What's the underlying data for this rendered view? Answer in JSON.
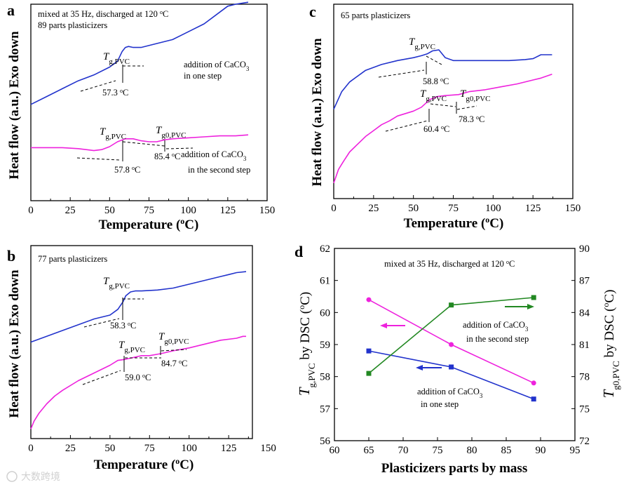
{
  "watermark": "大数跨境",
  "chart_data": [
    {
      "type": "line",
      "panel": "a",
      "panel_label": "a",
      "xlabel": "Temperature (oC)",
      "ylabel": "Heat flow (a.u.) Exo down",
      "xlim": [
        0,
        150
      ],
      "ylim": [
        0,
        100
      ],
      "x_ticks": [
        "0",
        "25",
        "50",
        "75",
        "100",
        "125",
        "150"
      ],
      "note_line1": "mixed at 35 Hz, discharged at 120 oC",
      "note_line2": "89 parts plasticizers",
      "series": [
        {
          "name": "addition of CaCO3 in one step",
          "color": "#2233cc",
          "x": [
            0,
            10,
            20,
            30,
            40,
            50,
            55,
            58,
            60,
            62,
            65,
            70,
            80,
            90,
            100,
            110,
            120,
            125,
            130,
            138
          ],
          "y": [
            49,
            53,
            57,
            61,
            64,
            68,
            71,
            76,
            78,
            78.5,
            78,
            78,
            80,
            82,
            86,
            90,
            96,
            99,
            100,
            101
          ]
        },
        {
          "name": "addition of CaCO3 in the second step",
          "color": "#ee22dd",
          "x": [
            0,
            10,
            20,
            30,
            40,
            45,
            50,
            55,
            60,
            65,
            70,
            75,
            80,
            85,
            90,
            100,
            110,
            120,
            130,
            138
          ],
          "y": [
            27,
            27,
            27,
            26.5,
            25.5,
            26,
            27.5,
            30,
            31.5,
            31.5,
            30.5,
            30,
            30,
            31,
            31.5,
            32,
            32.5,
            33,
            33,
            33.5
          ]
        }
      ],
      "annotations": [
        {
          "label": "Tg,PVC",
          "value": "57.3 oC"
        },
        {
          "label": "Tg,PVC",
          "value": "57.8 oC"
        },
        {
          "label": "Tg0,PVC",
          "value": "85.4 oC"
        }
      ],
      "legend_one_line1": "addition of CaCO3",
      "legend_one_line2": "in one step",
      "legend_second_line1": "addition of CaCO3",
      "legend_second_line2": "in the second step"
    },
    {
      "type": "line",
      "panel": "c",
      "panel_label": "c",
      "xlabel": "Temperature (oC)",
      "ylabel": "Heat flow (a.u.) Exo down",
      "xlim": [
        0,
        150
      ],
      "ylim": [
        0,
        100
      ],
      "x_ticks": [
        "0",
        "25",
        "50",
        "75",
        "100",
        "125",
        "150"
      ],
      "note_line1": "65 parts plasticizers",
      "series": [
        {
          "name": "addition of CaCO3 in one step",
          "color": "#2233cc",
          "x": [
            0,
            5,
            10,
            20,
            30,
            40,
            50,
            55,
            58.8,
            62,
            66,
            70,
            75,
            80,
            90,
            100,
            110,
            120,
            125,
            130,
            137
          ],
          "y": [
            46,
            55,
            60,
            66,
            69,
            71,
            72.5,
            73.5,
            74.5,
            76,
            76.5,
            72.5,
            71,
            71,
            71,
            71,
            71,
            71.5,
            72,
            74,
            74
          ]
        },
        {
          "name": "addition of CaCO3 in the second step",
          "color": "#ee22dd",
          "x": [
            0,
            3,
            6,
            10,
            15,
            20,
            25,
            30,
            35,
            40,
            50,
            55,
            60.4,
            65,
            70,
            78.3,
            85,
            95,
            105,
            115,
            125,
            130,
            137
          ],
          "y": [
            8,
            15,
            19,
            24,
            28,
            32,
            35,
            38,
            40,
            42.5,
            45,
            47,
            51,
            52.5,
            53,
            53.5,
            55,
            56,
            57.5,
            59,
            61,
            62,
            64
          ]
        }
      ],
      "annotations": [
        {
          "label": "Tg,PVC",
          "value": "58.8 oC"
        },
        {
          "label": "Tg,PVC",
          "value": "60.4 oC"
        },
        {
          "label": "Tg0,PVC",
          "value": "78.3 oC"
        }
      ]
    },
    {
      "type": "line",
      "panel": "b",
      "panel_label": "b",
      "xlabel": "Temperature (oC)",
      "ylabel": "Heat flow (a.u.) Exo down",
      "xlim": [
        0,
        150
      ],
      "ylim": [
        0,
        100
      ],
      "x_ticks": [
        "0",
        "25",
        "50",
        "75",
        "100",
        "125",
        "150"
      ],
      "note_line1": "77 parts plasticizers",
      "series": [
        {
          "name": "addition of CaCO3 in one step",
          "color": "#2233cc",
          "x": [
            0,
            10,
            20,
            30,
            40,
            50,
            55,
            58.3,
            60,
            63,
            66,
            70,
            80,
            90,
            100,
            110,
            120,
            125,
            130,
            136
          ],
          "y": [
            50,
            53,
            56,
            59,
            62,
            64,
            67,
            71,
            74,
            76,
            76.5,
            76.5,
            77,
            78,
            80,
            82,
            84,
            85,
            86,
            86.5
          ]
        },
        {
          "name": "addition of CaCO3 in the second step",
          "color": "#ee22dd",
          "x": [
            0,
            2,
            5,
            10,
            15,
            20,
            30,
            40,
            50,
            55,
            59,
            62,
            70,
            75,
            82,
            84.7,
            90,
            100,
            110,
            120,
            130,
            134,
            136
          ],
          "y": [
            5,
            9,
            13,
            18,
            22,
            25,
            30,
            34,
            38,
            40.5,
            41,
            41.5,
            43,
            43,
            44,
            44.5,
            45.5,
            47,
            49,
            51,
            52,
            53,
            53
          ]
        }
      ],
      "annotations": [
        {
          "label": "Tg,PVC",
          "value": "58.3 oC"
        },
        {
          "label": "Tg,PVC",
          "value": "59.0 oC"
        },
        {
          "label": "Tg0,PVC",
          "value": "84.7 oC"
        }
      ]
    },
    {
      "type": "line",
      "panel": "d",
      "panel_label": "d",
      "title": "mixed at 35 Hz, discharged at 120 oC",
      "xlabel": "Plasticizers parts by mass",
      "ylabel_left": "Tg,PVC by DSC (oC)",
      "ylabel_right": "Tg0,PVC by DSC (oC)",
      "xlim": [
        60,
        95
      ],
      "ylim_left": [
        56,
        62
      ],
      "ylim_right": [
        72,
        90
      ],
      "x_ticks": [
        "60",
        "65",
        "70",
        "75",
        "80",
        "85",
        "90",
        "95"
      ],
      "y_ticks_left": [
        "56",
        "57",
        "58",
        "59",
        "60",
        "61",
        "62"
      ],
      "y_ticks_right": [
        "72",
        "75",
        "78",
        "81",
        "84",
        "87",
        "90"
      ],
      "series": [
        {
          "name": "Tg,PVC addition of CaCO3 in the second step",
          "axis": "left",
          "marker": "circle",
          "color": "#ee22dd",
          "x": [
            65,
            77,
            89
          ],
          "y": [
            60.4,
            59.0,
            57.8
          ]
        },
        {
          "name": "Tg,PVC addition of CaCO3 in one step",
          "axis": "left",
          "marker": "square",
          "color": "#2233cc",
          "x": [
            65,
            77,
            89
          ],
          "y": [
            58.8,
            58.3,
            57.3
          ]
        },
        {
          "name": "Tg0,PVC addition of CaCO3 in the second step",
          "axis": "right",
          "marker": "square",
          "color": "#228822",
          "x": [
            65,
            77,
            89
          ],
          "y": [
            78.3,
            84.7,
            85.4
          ]
        }
      ],
      "legend_second_line1": "addition of CaCO3",
      "legend_second_line2": "in the second step",
      "legend_one_line1": "addition of CaCO3",
      "legend_one_line2": "in one step"
    }
  ]
}
